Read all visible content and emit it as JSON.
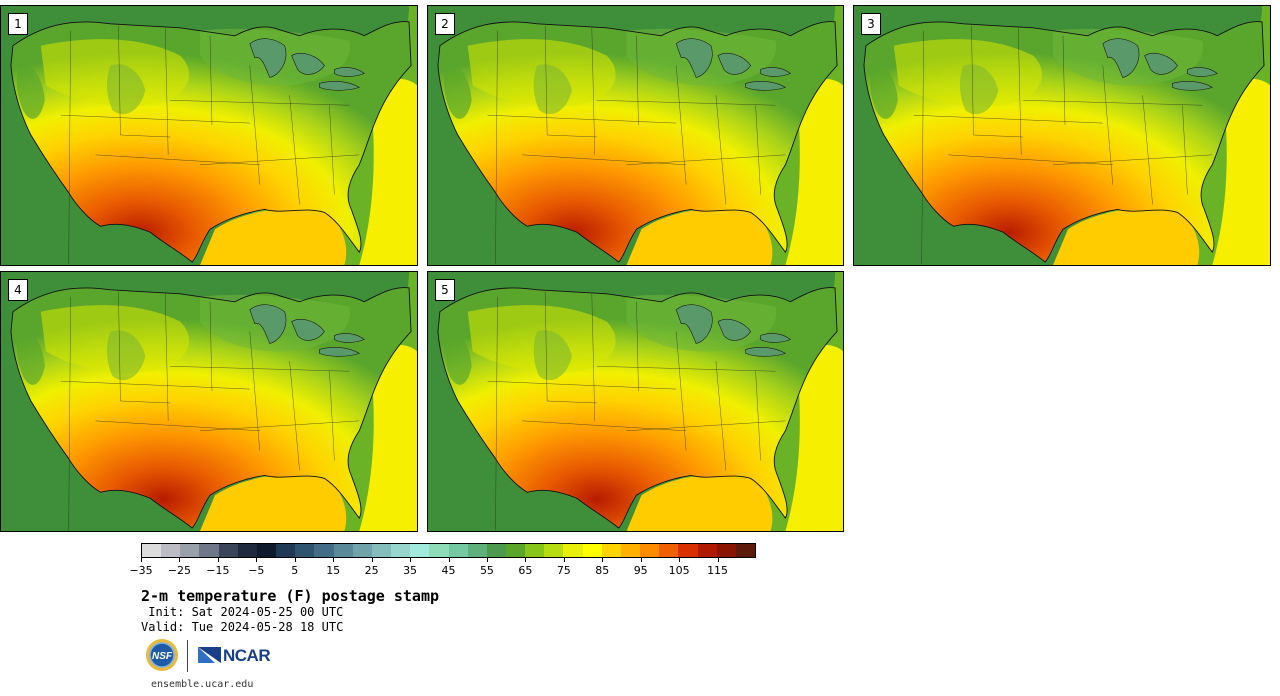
{
  "panels": [
    {
      "label": "1",
      "variant": 0
    },
    {
      "label": "2",
      "variant": 1
    },
    {
      "label": "3",
      "variant": 2
    },
    {
      "label": "4",
      "variant": 3
    },
    {
      "label": "5",
      "variant": 4
    }
  ],
  "colorbar": {
    "colors": [
      "#dcdcdc",
      "#bcbcc4",
      "#9aa0aa",
      "#6f7788",
      "#3b4559",
      "#1f2a3f",
      "#0f1a2c",
      "#203a55",
      "#2f5470",
      "#436d86",
      "#5a8a9a",
      "#6fa3a9",
      "#84bdbb",
      "#97d6cd",
      "#a2eadd",
      "#8fdcb8",
      "#74c9a2",
      "#5fb07a",
      "#4d9a4f",
      "#5aa62c",
      "#88c51a",
      "#b7dc10",
      "#e8f00a",
      "#ffff00",
      "#ffd400",
      "#ffb000",
      "#ff8c00",
      "#f06000",
      "#d83000",
      "#b01a00",
      "#8a1400",
      "#5c1a0a"
    ],
    "tick_labels": [
      "−35",
      "−25",
      "−15",
      "−5",
      "5",
      "15",
      "25",
      "35",
      "45",
      "55",
      "65",
      "75",
      "85",
      "95",
      "105",
      "115"
    ]
  },
  "title": "2-m temperature (F) postage stamp",
  "init": " Init: Sat 2024-05-25 00 UTC",
  "valid": "Valid: Tue 2024-05-28 18 UTC",
  "logos": {
    "nsf": "NSF",
    "ncar": "NCAR"
  },
  "url": "ensemble.ucar.edu"
}
